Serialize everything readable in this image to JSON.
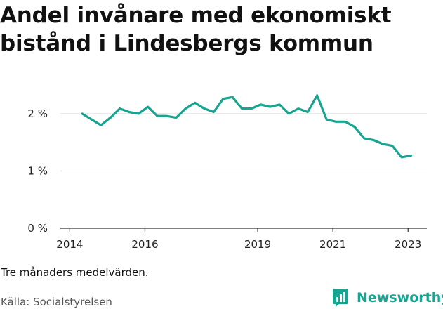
{
  "title": "Andel invånare med ekonomiskt bistånd i Lindesbergs kommun",
  "note": "Tre månaders medelvärden.",
  "source": "Källa: Socialstyrelsen",
  "brand": "Newsworthy",
  "colors": {
    "line": "#17a591",
    "grid": "#dddddd",
    "axis": "#333333",
    "brand": "#17a591"
  },
  "chart_data": {
    "type": "line",
    "x_ticks": [
      "2014",
      "2016",
      "2019",
      "2021",
      "2023"
    ],
    "y_ticks": [
      "0 %",
      "1 %",
      "2 %"
    ],
    "ylim": [
      0,
      2.6
    ],
    "xlim": [
      2013.75,
      2023.5
    ],
    "grid": true,
    "series": [
      {
        "values": [
          [
            2014.33,
            2.0
          ],
          [
            2014.58,
            1.9
          ],
          [
            2014.83,
            1.8
          ],
          [
            2015.08,
            1.93
          ],
          [
            2015.33,
            2.09
          ],
          [
            2015.58,
            2.03
          ],
          [
            2015.83,
            2.0
          ],
          [
            2016.08,
            2.12
          ],
          [
            2016.33,
            1.96
          ],
          [
            2016.58,
            1.96
          ],
          [
            2016.83,
            1.93
          ],
          [
            2017.08,
            2.09
          ],
          [
            2017.33,
            2.19
          ],
          [
            2017.58,
            2.09
          ],
          [
            2017.83,
            2.03
          ],
          [
            2018.08,
            2.26
          ],
          [
            2018.33,
            2.29
          ],
          [
            2018.58,
            2.09
          ],
          [
            2018.83,
            2.09
          ],
          [
            2019.08,
            2.16
          ],
          [
            2019.33,
            2.12
          ],
          [
            2019.58,
            2.16
          ],
          [
            2019.83,
            2.0
          ],
          [
            2020.08,
            2.09
          ],
          [
            2020.33,
            2.03
          ],
          [
            2020.58,
            2.32
          ],
          [
            2020.83,
            1.9
          ],
          [
            2021.08,
            1.86
          ],
          [
            2021.33,
            1.86
          ],
          [
            2021.58,
            1.77
          ],
          [
            2021.83,
            1.57
          ],
          [
            2022.08,
            1.54
          ],
          [
            2022.33,
            1.47
          ],
          [
            2022.58,
            1.44
          ],
          [
            2022.83,
            1.24
          ],
          [
            2023.08,
            1.27
          ]
        ]
      }
    ]
  }
}
